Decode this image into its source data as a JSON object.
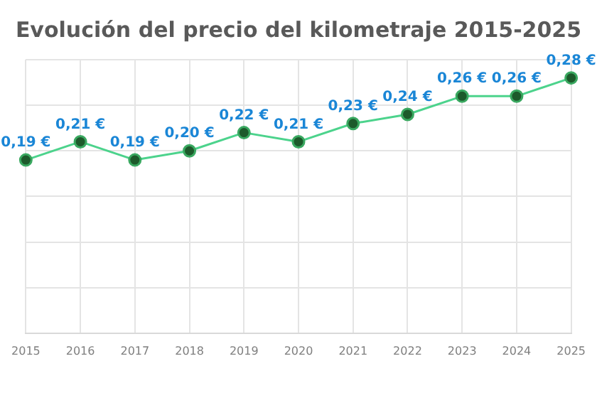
{
  "chart_data": {
    "type": "line",
    "title": "Evolución del precio del kilometraje 2015-2025",
    "categories": [
      "2015",
      "2016",
      "2017",
      "2018",
      "2019",
      "2020",
      "2021",
      "2022",
      "2023",
      "2024",
      "2025"
    ],
    "series": [
      {
        "color": "#4cd38c",
        "values": [
          0.19,
          0.21,
          0.19,
          0.2,
          0.22,
          0.21,
          0.23,
          0.24,
          0.26,
          0.26,
          0.28
        ],
        "value_labels": [
          "0,19 €",
          "0,21 €",
          "0,19 €",
          "0,20 €",
          "0,22 €",
          "0,21 €",
          "0,23 €",
          "0,24 €",
          "0,26 €",
          "0,26 €",
          "0,28 €"
        ]
      }
    ],
    "ylim": [
      0,
      0.3
    ],
    "yticks": [
      {
        "value": 0,
        "label": null
      },
      {
        "value": 0.05,
        "label": null
      },
      {
        "value": 0.1,
        "label": null
      },
      {
        "value": 0.15,
        "label": null
      },
      {
        "value": 0.2,
        "label": null
      },
      {
        "value": 0.25,
        "label": null
      },
      {
        "value": 0.3,
        "label": null
      }
    ],
    "grid": true,
    "tick_labels": "x",
    "marker": "circle",
    "line_style": "solid",
    "legend": false
  }
}
